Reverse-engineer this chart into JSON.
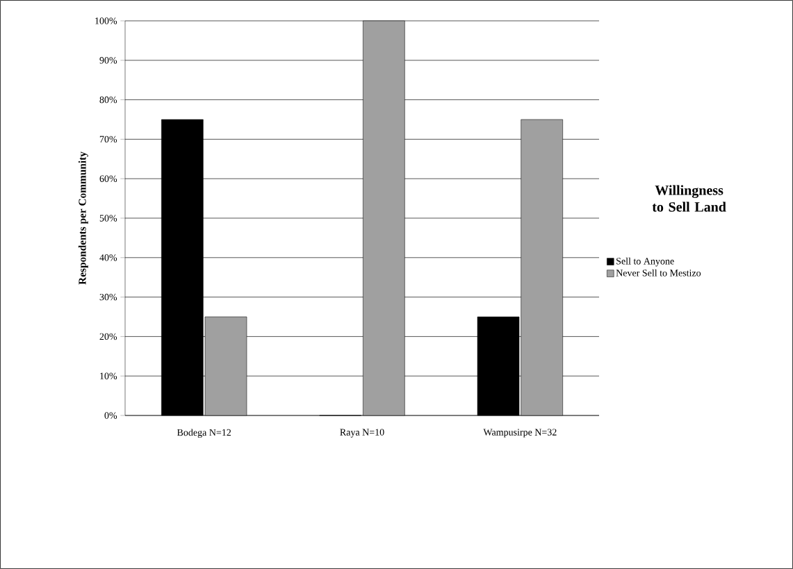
{
  "chart_data": {
    "type": "bar",
    "ylabel": "Respondents per Community",
    "legend_title": "Willingness to Sell Land",
    "categories": [
      "Bodega N=12",
      "Raya N=10",
      "Wampusirpe N=32"
    ],
    "series": [
      {
        "name": "Sell to Anyone",
        "color": "#000000",
        "values": [
          75,
          0,
          25
        ]
      },
      {
        "name": "Never Sell to Mestizo",
        "color": "#a0a0a0",
        "values": [
          25,
          100,
          75
        ]
      }
    ],
    "ylim": [
      0,
      100
    ],
    "yticks": [
      {
        "value": 0,
        "label": "0%"
      },
      {
        "value": 10,
        "label": "10%"
      },
      {
        "value": 20,
        "label": "20%"
      },
      {
        "value": 30,
        "label": "30%"
      },
      {
        "value": 40,
        "label": "40%"
      },
      {
        "value": 50,
        "label": "50%"
      },
      {
        "value": 60,
        "label": "60%"
      },
      {
        "value": 70,
        "label": "70%"
      },
      {
        "value": 80,
        "label": "80%"
      },
      {
        "value": 90,
        "label": "90%"
      },
      {
        "value": 100,
        "label": "100%"
      }
    ],
    "grid": "y",
    "legend": "right"
  }
}
